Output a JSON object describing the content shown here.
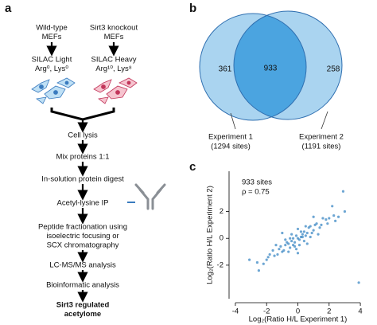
{
  "panel_a": {
    "label": "a",
    "sources": [
      {
        "lines": [
          "Wild-type",
          "MEFs"
        ],
        "labeling": [
          "SILAC Light",
          "Arg⁰, Lys⁰"
        ]
      },
      {
        "lines": [
          "Sirt3 knockout",
          "MEFs"
        ],
        "labeling": [
          "SILAC Heavy",
          "Arg¹⁰, Lys⁸"
        ]
      }
    ],
    "steps": [
      [
        "Cell lysis"
      ],
      [
        "Mix  proteins 1:1"
      ],
      [
        "In-solution protein digest"
      ],
      [
        "Acetyl-lysine IP"
      ],
      [
        "Peptide fractionation using",
        "isoelectric focusing or",
        "SCX chromatography"
      ],
      [
        "LC-MS/MS analysis"
      ],
      [
        "Bioinformatic analysis"
      ]
    ],
    "result": [
      "Sirt3 regulated",
      "acetylome"
    ]
  },
  "panel_b": {
    "label": "b",
    "left_only": 361,
    "overlap": 933,
    "right_only": 258,
    "sets": [
      {
        "name": "Experiment 1",
        "count": "(1294 sites)"
      },
      {
        "name": "Experiment 2",
        "count": "(1191 sites)"
      }
    ]
  },
  "chart_data": {
    "type": "scatter",
    "label": "c",
    "x_label": "Log₂(Ratio H/L Experiment 1)",
    "y_label": "Log₂(Ratio H/L Experiment 2)",
    "annotations": [
      "933 sites",
      "ρ = 0.75"
    ],
    "color": "#2f80c0",
    "xlim": [
      -4.2,
      4.2
    ],
    "ylim": [
      -4.5,
      5
    ],
    "xticks": [
      -4,
      -2,
      0,
      2,
      4
    ],
    "yticks": [
      -2,
      0,
      2
    ],
    "x": [
      0,
      0.2,
      -0.2,
      0.4,
      -0.4,
      0.1,
      -0.1,
      0.3,
      -0.3,
      0.6,
      -0.6,
      0.8,
      -0.8,
      1.0,
      -1.0,
      1.2,
      -1.2,
      0.5,
      -0.5,
      0.7,
      -0.7,
      1.5,
      -1.5,
      1.8,
      -1.8,
      2.0,
      -2.0,
      2.3,
      -2.2,
      0.9,
      -0.9,
      0.2,
      -0.2,
      0.4,
      -0.4,
      1.1,
      -1.1,
      1.4,
      -1.3,
      2.6,
      -2.6,
      3.0,
      -3.1,
      0.0,
      0.1,
      -0.1,
      0.5,
      -0.5,
      0.3,
      -0.3,
      1.6,
      -1.6,
      2.2,
      -0.8,
      0.8,
      1.9,
      -1.9,
      3.9,
      2.9,
      -2.5,
      0.6,
      -0.6,
      1.3,
      -1.4,
      2.4,
      0.0,
      -1.0,
      1.0
    ],
    "y": [
      0,
      0.1,
      -0.3,
      0.5,
      -0.2,
      -0.1,
      0.2,
      0.1,
      -0.5,
      0.4,
      -0.4,
      0.9,
      -0.5,
      0.6,
      -1.0,
      1.1,
      -0.8,
      0.2,
      -0.7,
      0.8,
      -0.3,
      1.0,
      -1.3,
      1.4,
      -1.2,
      1.5,
      -1.6,
      1.7,
      -1.9,
      0.4,
      -0.9,
      0.5,
      -0.6,
      -0.2,
      0.3,
      1.0,
      -0.6,
      0.8,
      -1.2,
      1.6,
      -1.8,
      2.0,
      -1.6,
      0.7,
      -0.5,
      -0.8,
      0.9,
      0.0,
      0.3,
      0.0,
      1.5,
      -0.9,
      2.4,
      -0.1,
      0.1,
      1.1,
      -1.4,
      -3.3,
      3.5,
      -2.4,
      -0.4,
      -1.0,
      0.3,
      -0.5,
      1.3,
      -1.1,
      0.4,
      1.6
    ]
  }
}
